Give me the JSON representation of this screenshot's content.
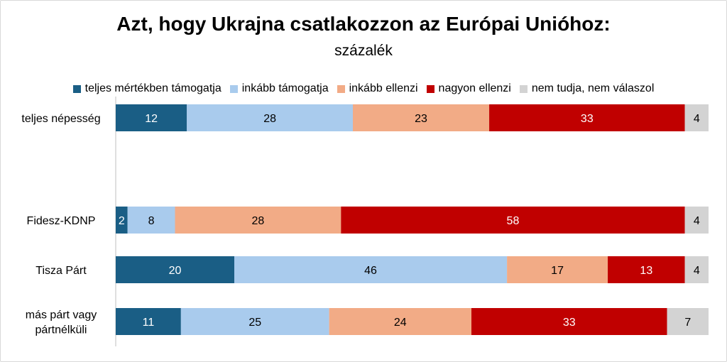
{
  "chart_data": {
    "type": "bar",
    "orientation": "horizontal-stacked-100",
    "title": "Azt, hogy Ukrajna csatlakozzon az Európai Unióhoz:",
    "subtitle": "százalék",
    "legend_position": "top",
    "grid": false,
    "xlim": [
      0,
      100
    ],
    "categories": [
      [
        "teljes népesség"
      ],
      [
        "Fidesz-KDNP"
      ],
      [
        "Tisza Párt"
      ],
      [
        "más párt vagy",
        "pártnélküli"
      ]
    ],
    "series": [
      {
        "name": "teljes mértékben támogatja",
        "color": "#1a5e85",
        "label_color": "#ffffff",
        "values": [
          12,
          2,
          20,
          11
        ]
      },
      {
        "name": "inkább támogatja",
        "color": "#a9cbed",
        "label_color": "#000000",
        "values": [
          28,
          8,
          46,
          25
        ]
      },
      {
        "name": "inkább ellenzi",
        "color": "#f2ab86",
        "label_color": "#000000",
        "values": [
          23,
          28,
          17,
          24
        ]
      },
      {
        "name": "nagyon ellenzi",
        "color": "#c00000",
        "label_color": "#ffffff",
        "values": [
          33,
          58,
          13,
          33
        ]
      },
      {
        "name": "nem tudja, nem válaszol",
        "color": "#d3d3d3",
        "label_color": "#000000",
        "values": [
          4,
          4,
          4,
          7
        ]
      }
    ]
  }
}
